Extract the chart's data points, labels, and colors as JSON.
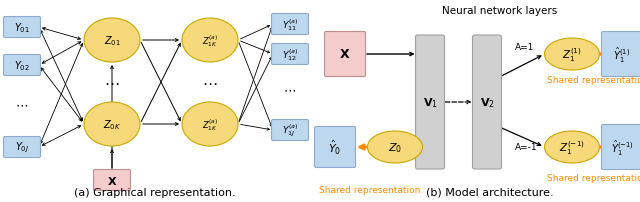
{
  "fig_width": 6.4,
  "fig_height": 2.03,
  "dpi": 100,
  "background": "#ffffff",
  "caption_a": "(a) Graphical representation.",
  "caption_b": "(b) Model architecture.",
  "nn_title": "Neural network layers",
  "colors": {
    "yellow_face": "#F5D97A",
    "yellow_edge": "#C8A800",
    "blue_box_face": "#BDD7EE",
    "blue_box_edge": "#8FAACC",
    "pink_box_face": "#F4CCCC",
    "pink_box_edge": "#C09090",
    "gray_layer_face": "#D0D0D0",
    "gray_layer_edge": "#A0A0A0",
    "orange_arrow": "#FF8C00",
    "orange_text": "#FF8C00"
  }
}
